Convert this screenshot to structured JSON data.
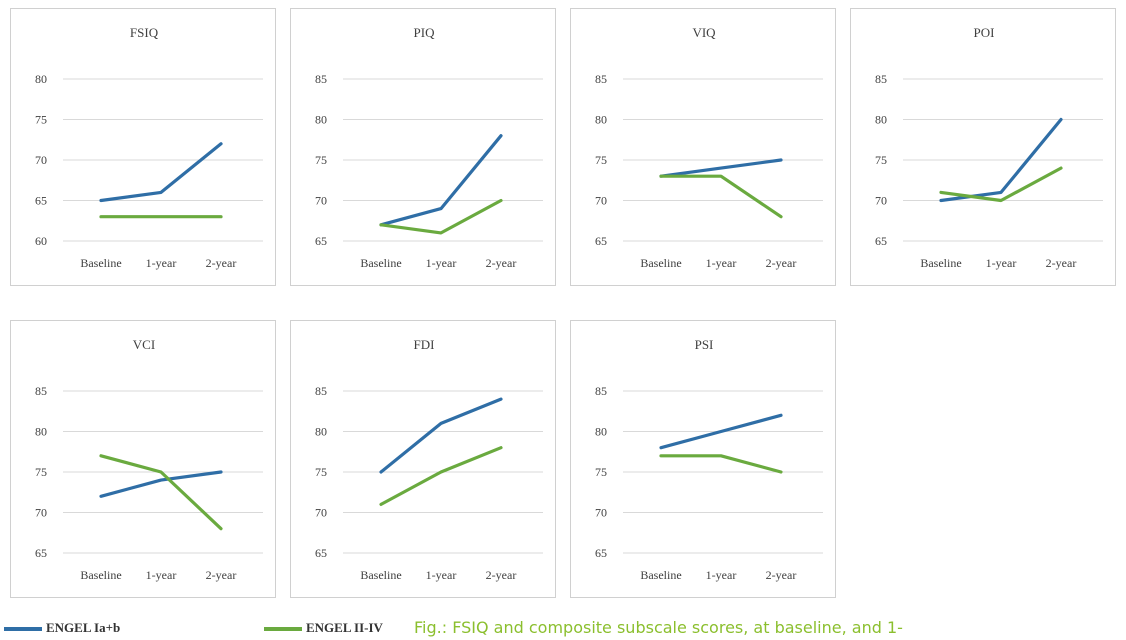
{
  "colors": {
    "engel_ia_b": "#2f6ea6",
    "engel_ii_iv": "#6aaa3f",
    "caption": "#8bbf2e"
  },
  "legend": {
    "items": [
      {
        "name": "ENGEL Ia+b",
        "color": "#2f6ea6"
      },
      {
        "name": "ENGEL II-IV",
        "color": "#6aaa3f"
      }
    ]
  },
  "caption": "Fig.: FSIQ and composite subscale scores, at baseline, and 1-",
  "chart_data": [
    {
      "type": "line",
      "title": "FSIQ",
      "categories": [
        "Baseline",
        "1-year",
        "2-year"
      ],
      "ylim": [
        60,
        80
      ],
      "yticks": [
        60,
        65,
        70,
        75,
        80
      ],
      "grid": true,
      "series": [
        {
          "name": "ENGEL Ia+b",
          "values": [
            65,
            66,
            72
          ]
        },
        {
          "name": "ENGEL II-IV",
          "values": [
            63,
            63,
            63
          ]
        }
      ]
    },
    {
      "type": "line",
      "title": "PIQ",
      "categories": [
        "Baseline",
        "1-year",
        "2-year"
      ],
      "ylim": [
        65,
        85
      ],
      "yticks": [
        65,
        70,
        75,
        80,
        85
      ],
      "grid": true,
      "series": [
        {
          "name": "ENGEL Ia+b",
          "values": [
            67,
            69,
            78
          ]
        },
        {
          "name": "ENGEL II-IV",
          "values": [
            67,
            66,
            70
          ]
        }
      ]
    },
    {
      "type": "line",
      "title": "VIQ",
      "categories": [
        "Baseline",
        "1-year",
        "2-year"
      ],
      "ylim": [
        65,
        85
      ],
      "yticks": [
        65,
        70,
        75,
        80,
        85
      ],
      "grid": true,
      "series": [
        {
          "name": "ENGEL Ia+b",
          "values": [
            73,
            74,
            75
          ]
        },
        {
          "name": "ENGEL II-IV",
          "values": [
            73,
            73,
            68
          ]
        }
      ]
    },
    {
      "type": "line",
      "title": "POI",
      "categories": [
        "Baseline",
        "1-year",
        "2-year"
      ],
      "ylim": [
        65,
        85
      ],
      "yticks": [
        65,
        70,
        75,
        80,
        85
      ],
      "grid": true,
      "series": [
        {
          "name": "ENGEL Ia+b",
          "values": [
            70,
            71,
            80
          ]
        },
        {
          "name": "ENGEL II-IV",
          "values": [
            71,
            70,
            74
          ]
        }
      ]
    },
    {
      "type": "line",
      "title": "VCI",
      "categories": [
        "Baseline",
        "1-year",
        "2-year"
      ],
      "ylim": [
        65,
        85
      ],
      "yticks": [
        65,
        70,
        75,
        80,
        85
      ],
      "grid": true,
      "series": [
        {
          "name": "ENGEL Ia+b",
          "values": [
            72,
            74,
            75
          ]
        },
        {
          "name": "ENGEL II-IV",
          "values": [
            77,
            75,
            68
          ]
        }
      ]
    },
    {
      "type": "line",
      "title": "FDI",
      "categories": [
        "Baseline",
        "1-year",
        "2-year"
      ],
      "ylim": [
        65,
        85
      ],
      "yticks": [
        65,
        70,
        75,
        80,
        85
      ],
      "grid": true,
      "series": [
        {
          "name": "ENGEL Ia+b",
          "values": [
            75,
            81,
            84
          ]
        },
        {
          "name": "ENGEL II-IV",
          "values": [
            71,
            75,
            78
          ]
        }
      ]
    },
    {
      "type": "line",
      "title": "PSI",
      "categories": [
        "Baseline",
        "1-year",
        "2-year"
      ],
      "ylim": [
        65,
        85
      ],
      "yticks": [
        65,
        70,
        75,
        80,
        85
      ],
      "grid": true,
      "series": [
        {
          "name": "ENGEL Ia+b",
          "values": [
            78,
            80,
            82
          ]
        },
        {
          "name": "ENGEL II-IV",
          "values": [
            77,
            77,
            75
          ]
        }
      ]
    }
  ]
}
